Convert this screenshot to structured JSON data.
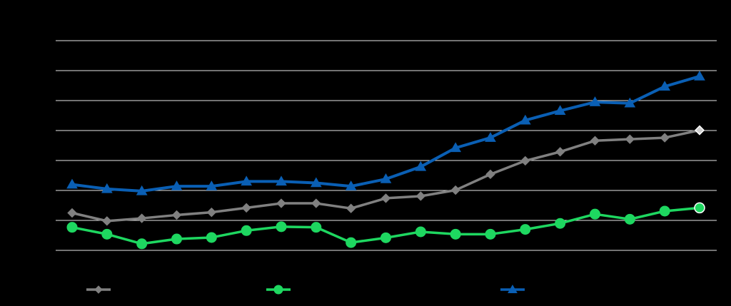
{
  "chart_data": {
    "type": "line",
    "title": "",
    "xlabel": "",
    "ylabel": "",
    "grid": true,
    "legend_position": "bottom",
    "ylim": [
      0,
      7
    ],
    "gridlines": [
      0,
      1,
      2,
      3,
      4,
      5,
      6,
      7
    ],
    "x": [
      1,
      2,
      3,
      4,
      5,
      6,
      7,
      8,
      9,
      10,
      11,
      12,
      13,
      14,
      15,
      16,
      17,
      18,
      19
    ],
    "series": [
      {
        "key": "gray",
        "color": "#808080",
        "marker": "diamond",
        "values": [
          1.25,
          0.98,
          1.07,
          1.18,
          1.27,
          1.42,
          1.57,
          1.57,
          1.4,
          1.74,
          1.81,
          2.01,
          2.54,
          2.99,
          3.29,
          3.66,
          3.71,
          3.76,
          4.01
        ]
      },
      {
        "key": "green",
        "color": "#1ed760",
        "marker": "circle",
        "values": [
          0.77,
          0.54,
          0.22,
          0.38,
          0.43,
          0.66,
          0.79,
          0.77,
          0.26,
          0.42,
          0.62,
          0.54,
          0.54,
          0.7,
          0.9,
          1.21,
          1.04,
          1.31,
          1.42
        ]
      },
      {
        "key": "blue",
        "color": "#0a5fb4",
        "marker": "triangle",
        "values": [
          2.2,
          2.05,
          1.98,
          2.14,
          2.14,
          2.3,
          2.3,
          2.25,
          2.14,
          2.38,
          2.79,
          3.42,
          3.76,
          4.34,
          4.66,
          4.95,
          4.91,
          5.47,
          5.81
        ]
      }
    ],
    "legend": [
      {
        "series": "gray",
        "label": ""
      },
      {
        "series": "green",
        "label": ""
      },
      {
        "series": "blue",
        "label": ""
      }
    ]
  }
}
